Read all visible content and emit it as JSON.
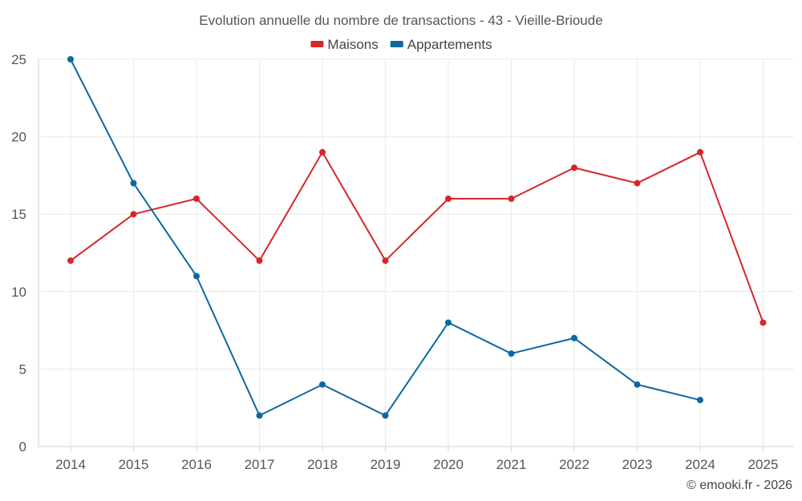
{
  "chart_data": {
    "type": "line",
    "title": "Evolution annuelle du nombre de transactions - 43 - Vieille-Brioude",
    "categories": [
      "2014",
      "2015",
      "2016",
      "2017",
      "2018",
      "2019",
      "2020",
      "2021",
      "2022",
      "2023",
      "2024",
      "2025"
    ],
    "ylim": [
      0,
      25
    ],
    "yticks": [
      0,
      5,
      10,
      15,
      20,
      25
    ],
    "xlabel": "",
    "ylabel": "",
    "legend_position": "top-center",
    "grid": true,
    "series": [
      {
        "name": "Maisons",
        "color": "#d62728",
        "values": [
          12,
          15,
          16,
          12,
          19,
          12,
          16,
          16,
          18,
          17,
          19,
          8
        ]
      },
      {
        "name": "Appartements",
        "color": "#0c68a0",
        "values": [
          25,
          17,
          11,
          2,
          4,
          2,
          8,
          6,
          7,
          4,
          3,
          null
        ]
      }
    ],
    "credit": "© emooki.fr - 2026"
  }
}
